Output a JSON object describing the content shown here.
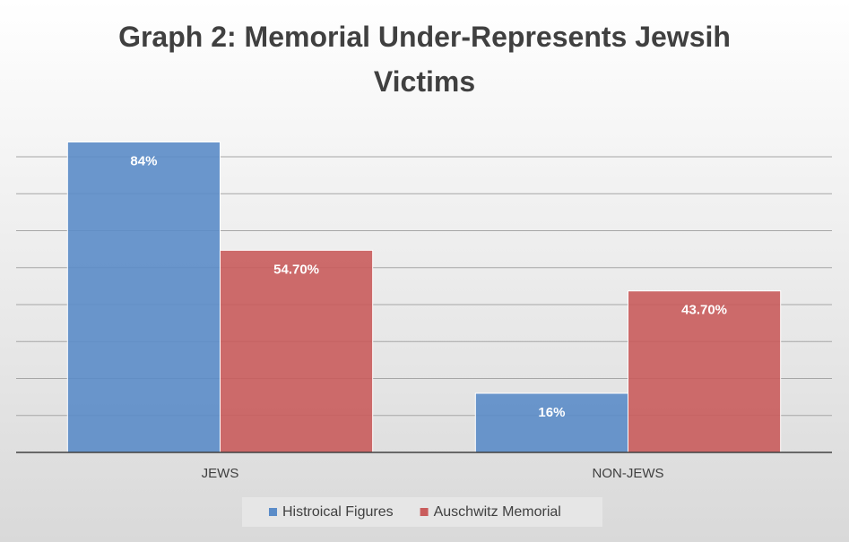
{
  "chart_data": {
    "type": "bar",
    "title": "Graph 2: Memorial Under-Represents Jewsih Victims",
    "categories": [
      "JEWS",
      "NON-JEWS"
    ],
    "series": [
      {
        "name": "Histroical Figures",
        "color": "#5b8cc8",
        "values": [
          84,
          16
        ],
        "value_labels": [
          "84%",
          "16%"
        ]
      },
      {
        "name": "Auschwitz Memorial",
        "color": "#c95c5c",
        "values": [
          54.7,
          43.7
        ],
        "value_labels": [
          "54.70%",
          "43.70%"
        ]
      }
    ],
    "ylim": [
      0,
      88
    ],
    "yticks": [
      0,
      10,
      20,
      30,
      40,
      50,
      60,
      70,
      80
    ],
    "grid": true,
    "legend": "bottom"
  }
}
